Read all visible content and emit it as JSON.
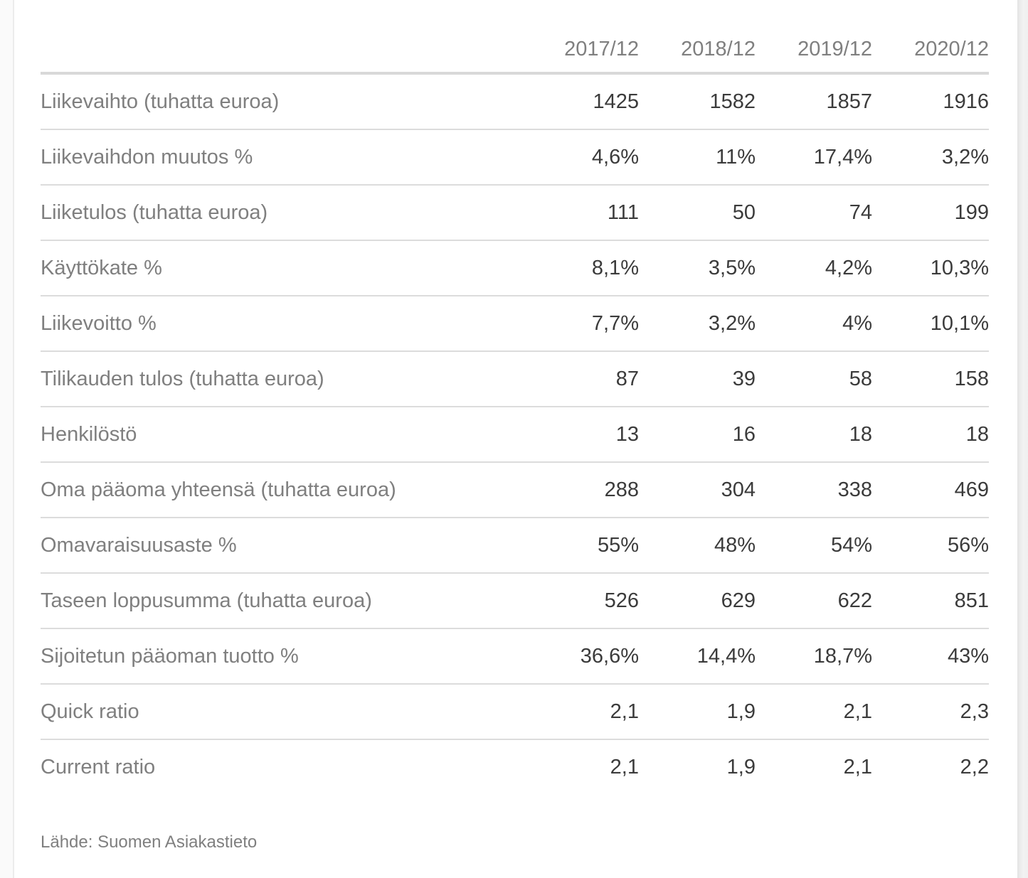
{
  "chart_data": {
    "type": "table",
    "columns": [
      "2017/12",
      "2018/12",
      "2019/12",
      "2020/12"
    ],
    "rows": [
      {
        "label": "Liikevaihto (tuhatta euroa)",
        "values": [
          "1425",
          "1582",
          "1857",
          "1916"
        ]
      },
      {
        "label": "Liikevaihdon muutos %",
        "values": [
          "4,6%",
          "11%",
          "17,4%",
          "3,2%"
        ]
      },
      {
        "label": "Liiketulos (tuhatta euroa)",
        "values": [
          "111",
          "50",
          "74",
          "199"
        ]
      },
      {
        "label": "Käyttökate %",
        "values": [
          "8,1%",
          "3,5%",
          "4,2%",
          "10,3%"
        ]
      },
      {
        "label": "Liikevoitto %",
        "values": [
          "7,7%",
          "3,2%",
          "4%",
          "10,1%"
        ]
      },
      {
        "label": "Tilikauden tulos (tuhatta euroa)",
        "values": [
          "87",
          "39",
          "58",
          "158"
        ]
      },
      {
        "label": "Henkilöstö",
        "values": [
          "13",
          "16",
          "18",
          "18"
        ]
      },
      {
        "label": "Oma pääoma yhteensä (tuhatta euroa)",
        "values": [
          "288",
          "304",
          "338",
          "469"
        ]
      },
      {
        "label": "Omavaraisuusaste %",
        "values": [
          "55%",
          "48%",
          "54%",
          "56%"
        ]
      },
      {
        "label": "Taseen loppusumma (tuhatta euroa)",
        "values": [
          "526",
          "629",
          "622",
          "851"
        ]
      },
      {
        "label": "Sijoitetun pääoman tuotto %",
        "values": [
          "36,6%",
          "14,4%",
          "18,7%",
          "43%"
        ]
      },
      {
        "label": "Quick ratio",
        "values": [
          "2,1",
          "1,9",
          "2,1",
          "2,3"
        ]
      },
      {
        "label": "Current ratio",
        "values": [
          "2,1",
          "1,9",
          "2,1",
          "2,2"
        ]
      }
    ],
    "source": "Lähde: Suomen Asiakastieto",
    "layout": {
      "value_alignment": "right",
      "grid": "horizontal-rules"
    }
  },
  "colors": {
    "label_text": "#7f7f7f",
    "value_text": "#3b3b3b",
    "header_rule": "#d8d8d8",
    "row_rule": "#dcdcdc",
    "panel_background": "#ffffff",
    "page_background": "#fafafa",
    "panel_border": "#ececec",
    "scrollbar_track": "#e9e9e9"
  }
}
